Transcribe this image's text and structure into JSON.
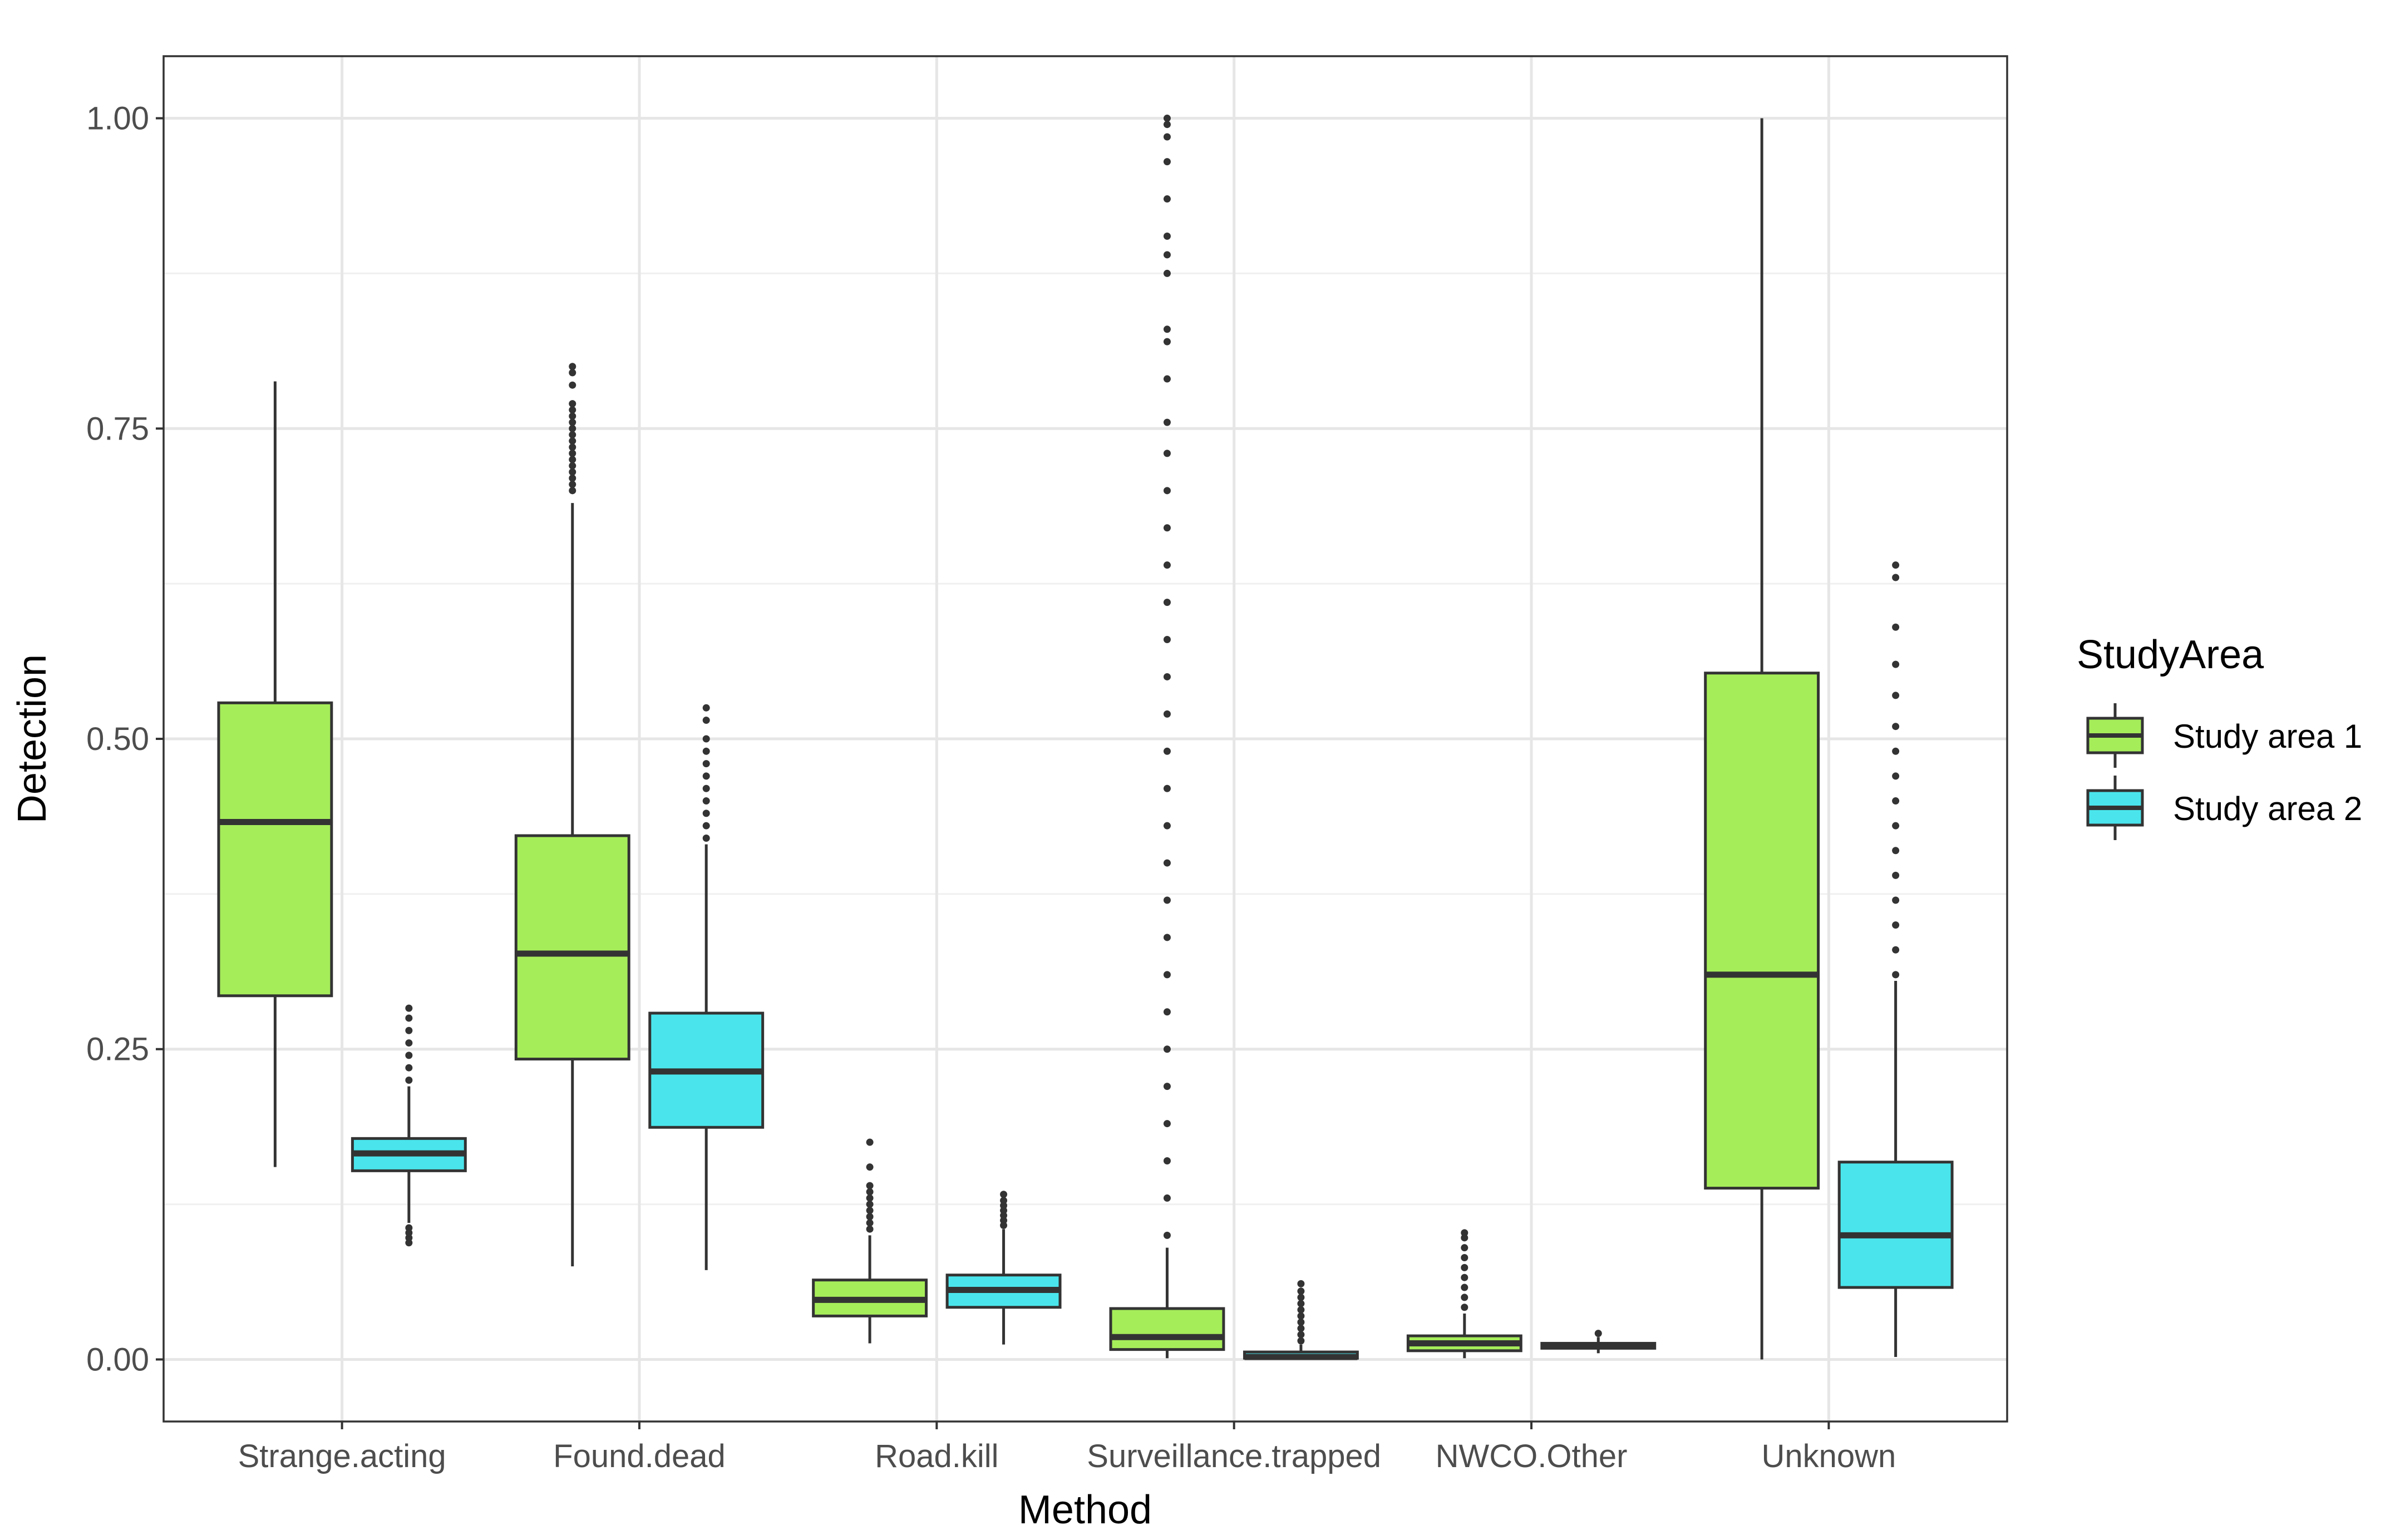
{
  "chart_data": {
    "type": "boxplot",
    "title": "",
    "xlabel": "Method",
    "ylabel": "Detection",
    "ylim": [
      -0.05,
      1.05
    ],
    "grid": true,
    "legend_position": "right",
    "categories": [
      "Strange.acting",
      "Found.dead",
      "Road.kill",
      "Surveillance.trapped",
      "NWCO.Other",
      "Unknown"
    ],
    "y_ticks": [
      {
        "value": 0.0,
        "label": "0.00"
      },
      {
        "value": 0.25,
        "label": "0.25"
      },
      {
        "value": 0.5,
        "label": "0.50"
      },
      {
        "value": 0.75,
        "label": "0.75"
      },
      {
        "value": 1.0,
        "label": "1.00"
      }
    ],
    "legend": {
      "title": "StudyArea",
      "entries": [
        "Study area 1",
        "Study area 2"
      ]
    },
    "series": [
      {
        "name": "Study area 1",
        "color": "#a6ed5a",
        "boxes": [
          {
            "min": 0.155,
            "q1": 0.293,
            "median": 0.433,
            "q3": 0.529,
            "max": 0.788,
            "outliers": []
          },
          {
            "min": 0.075,
            "q1": 0.242,
            "median": 0.327,
            "q3": 0.422,
            "max": 0.69,
            "outliers": [
              0.7,
              0.705,
              0.71,
              0.715,
              0.72,
              0.725,
              0.73,
              0.735,
              0.74,
              0.745,
              0.75,
              0.755,
              0.76,
              0.765,
              0.77,
              0.785,
              0.795,
              0.8
            ]
          },
          {
            "min": 0.013,
            "q1": 0.035,
            "median": 0.048,
            "q3": 0.064,
            "max": 0.1,
            "outliers": [
              0.105,
              0.11,
              0.115,
              0.12,
              0.125,
              0.13,
              0.135,
              0.14,
              0.155,
              0.175
            ]
          },
          {
            "min": 0.001,
            "q1": 0.008,
            "median": 0.018,
            "q3": 0.041,
            "max": 0.09,
            "outliers": [
              0.1,
              0.13,
              0.16,
              0.19,
              0.22,
              0.25,
              0.28,
              0.31,
              0.34,
              0.37,
              0.4,
              0.43,
              0.46,
              0.49,
              0.52,
              0.55,
              0.58,
              0.61,
              0.64,
              0.67,
              0.7,
              0.73,
              0.755,
              0.79,
              0.82,
              0.83,
              0.875,
              0.89,
              0.905,
              0.935,
              0.965,
              0.985,
              0.995,
              1.0
            ]
          },
          {
            "min": 0.001,
            "q1": 0.007,
            "median": 0.013,
            "q3": 0.019,
            "max": 0.037,
            "outliers": [
              0.042,
              0.05,
              0.058,
              0.066,
              0.074,
              0.082,
              0.09,
              0.098,
              0.102
            ]
          },
          {
            "min": 0.0,
            "q1": 0.138,
            "median": 0.31,
            "q3": 0.553,
            "max": 1.0,
            "outliers": []
          }
        ]
      },
      {
        "name": "Study area 2",
        "color": "#4ae5ec",
        "boxes": [
          {
            "min": 0.11,
            "q1": 0.152,
            "median": 0.166,
            "q3": 0.178,
            "max": 0.22,
            "outliers": [
              0.094,
              0.098,
              0.102,
              0.106,
              0.225,
              0.235,
              0.245,
              0.255,
              0.265,
              0.275,
              0.283
            ]
          },
          {
            "min": 0.072,
            "q1": 0.187,
            "median": 0.232,
            "q3": 0.279,
            "max": 0.415,
            "outliers": [
              0.42,
              0.43,
              0.44,
              0.45,
              0.46,
              0.47,
              0.48,
              0.49,
              0.5,
              0.515,
              0.525
            ]
          },
          {
            "min": 0.012,
            "q1": 0.042,
            "median": 0.056,
            "q3": 0.068,
            "max": 0.105,
            "outliers": [
              0.108,
              0.112,
              0.116,
              0.12,
              0.124,
              0.128,
              0.133
            ]
          },
          {
            "min": 0.0,
            "q1": 0.001,
            "median": 0.002,
            "q3": 0.006,
            "max": 0.012,
            "outliers": [
              0.015,
              0.02,
              0.025,
              0.03,
              0.035,
              0.04,
              0.045,
              0.05,
              0.055,
              0.061
            ]
          },
          {
            "min": 0.005,
            "q1": 0.009,
            "median": 0.011,
            "q3": 0.013,
            "max": 0.018,
            "outliers": [
              0.021
            ]
          },
          {
            "min": 0.002,
            "q1": 0.058,
            "median": 0.1,
            "q3": 0.159,
            "max": 0.305,
            "outliers": [
              0.31,
              0.33,
              0.35,
              0.37,
              0.39,
              0.41,
              0.43,
              0.45,
              0.47,
              0.49,
              0.51,
              0.535,
              0.56,
              0.59,
              0.63,
              0.64
            ]
          }
        ]
      }
    ]
  }
}
